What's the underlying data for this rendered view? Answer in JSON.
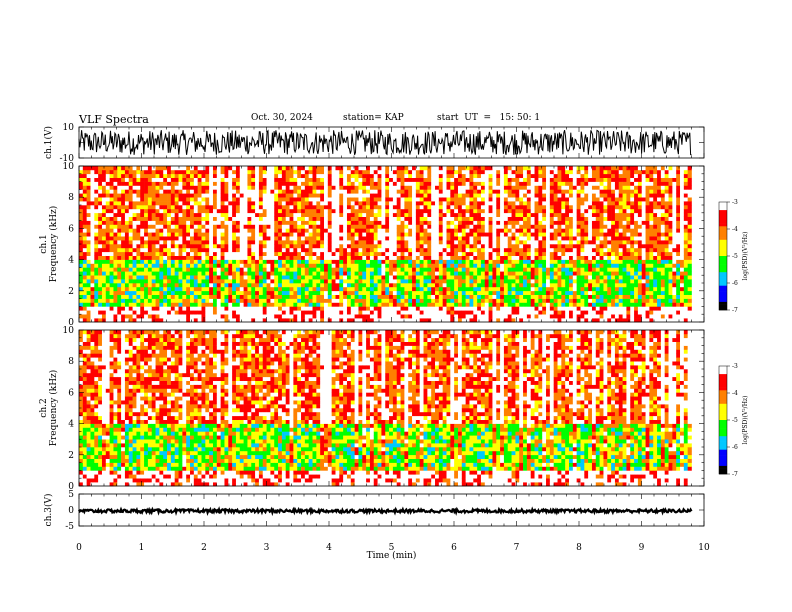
{
  "header": {
    "title": "VLF Spectra",
    "date": "Oct. 30, 2024",
    "station": "station= KAP",
    "start": "start  UT  =   15: 50: 1"
  },
  "colors": {
    "waveform": "#000000",
    "colorscale": [
      "#000000",
      "#0000ff",
      "#00c8ff",
      "#00ff00",
      "#ffff00",
      "#ff8000",
      "#ff0000",
      "#ffffff"
    ]
  },
  "chart_data": [
    {
      "id": "ch1-waveform",
      "type": "line",
      "ylabel": "ch.1(V)",
      "xlim": [
        0,
        10
      ],
      "ylim": [
        -10,
        10
      ],
      "yticks": [
        "10",
        "-10"
      ],
      "data_end_min": 9.8,
      "amplitude_range_V": [
        -8,
        8
      ]
    },
    {
      "id": "ch1-spectrogram",
      "type": "heatmap",
      "ylabel": "ch.1\nFrequency  (kHz)",
      "xlim": [
        0,
        10
      ],
      "ylim": [
        0,
        10
      ],
      "yticks": [
        "0",
        "2",
        "4",
        "6",
        "8",
        "10"
      ],
      "data_end_min": 9.8,
      "colorbar": {
        "label": "log(PSD)(V²/Hz)",
        "range": [
          -7,
          -3
        ],
        "ticks": [
          "-3",
          "-4",
          "-5",
          "-6",
          "-7"
        ]
      },
      "bands": [
        {
          "range_kHz": [
            0,
            1
          ],
          "logpsd": -3.2
        },
        {
          "range_kHz": [
            1,
            4
          ],
          "logpsd": -5.0
        },
        {
          "range_kHz": [
            4,
            10
          ],
          "logpsd": -3.8
        }
      ]
    },
    {
      "id": "ch2-spectrogram",
      "type": "heatmap",
      "ylabel": "ch.2\nFrequency  (kHz)",
      "xlim": [
        0,
        10
      ],
      "ylim": [
        0,
        10
      ],
      "yticks": [
        "0",
        "2",
        "4",
        "6",
        "8",
        "10"
      ],
      "data_end_min": 9.8,
      "colorbar": {
        "label": "log(PSD)(V²/Hz)",
        "range": [
          -7,
          -3
        ],
        "ticks": [
          "-3",
          "-4",
          "-5",
          "-6",
          "-7"
        ]
      },
      "bands": [
        {
          "range_kHz": [
            0,
            1
          ],
          "logpsd": -3.2
        },
        {
          "range_kHz": [
            1,
            4
          ],
          "logpsd": -5.0
        },
        {
          "range_kHz": [
            4,
            10
          ],
          "logpsd": -3.8
        }
      ]
    },
    {
      "id": "ch3-waveform",
      "type": "line",
      "ylabel": "ch.3(V)",
      "xlabel": "Time  (min)",
      "xlim": [
        0,
        10
      ],
      "ylim": [
        -5,
        5
      ],
      "yticks": [
        "5",
        "0",
        "-5"
      ],
      "xticks": [
        "0",
        "1",
        "2",
        "3",
        "4",
        "5",
        "6",
        "7",
        "8",
        "9",
        "10"
      ],
      "data_end_min": 9.8,
      "level_V": [
        -0.8,
        0.2
      ]
    }
  ]
}
